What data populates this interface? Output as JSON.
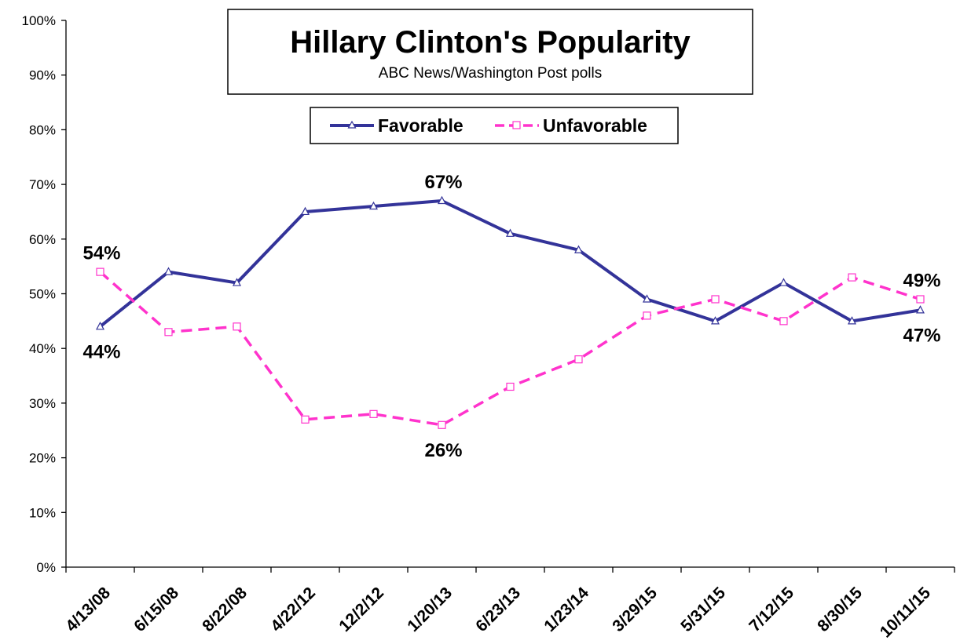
{
  "chart_data": {
    "type": "line",
    "title": "Hillary Clinton's Popularity",
    "subtitle": "ABC News/Washington  Post polls",
    "categories": [
      "4/13/08",
      "6/15/08",
      "8/22/08",
      "4/22/12",
      "12/2/12",
      "1/20/13",
      "6/23/13",
      "1/23/14",
      "3/29/15",
      "5/31/15",
      "7/12/15",
      "8/30/15",
      "10/11/15"
    ],
    "ylim": [
      0,
      100
    ],
    "y_ticks": [
      "0%",
      "10%",
      "20%",
      "30%",
      "40%",
      "50%",
      "60%",
      "70%",
      "80%",
      "90%",
      "100%"
    ],
    "grid": false,
    "legend_position": "top-center",
    "series": [
      {
        "name": "Favorable",
        "color": "#333399",
        "dash": "solid",
        "marker": "triangle",
        "values": [
          44,
          54,
          52,
          65,
          66,
          67,
          61,
          58,
          49,
          45,
          52,
          45,
          47
        ]
      },
      {
        "name": "Unfavorable",
        "color": "#ff33cc",
        "dash": "dashed",
        "marker": "square",
        "values": [
          54,
          43,
          44,
          27,
          28,
          26,
          33,
          38,
          46,
          49,
          45,
          53,
          49
        ]
      }
    ],
    "annotations": [
      {
        "series": 1,
        "index": 0,
        "text": "54%",
        "position": "above"
      },
      {
        "series": 0,
        "index": 0,
        "text": "44%",
        "position": "below"
      },
      {
        "series": 0,
        "index": 5,
        "text": "67%",
        "position": "above"
      },
      {
        "series": 1,
        "index": 5,
        "text": "26%",
        "position": "below"
      },
      {
        "series": 1,
        "index": 12,
        "text": "49%",
        "position": "above"
      },
      {
        "series": 0,
        "index": 12,
        "text": "47%",
        "position": "below"
      }
    ]
  }
}
